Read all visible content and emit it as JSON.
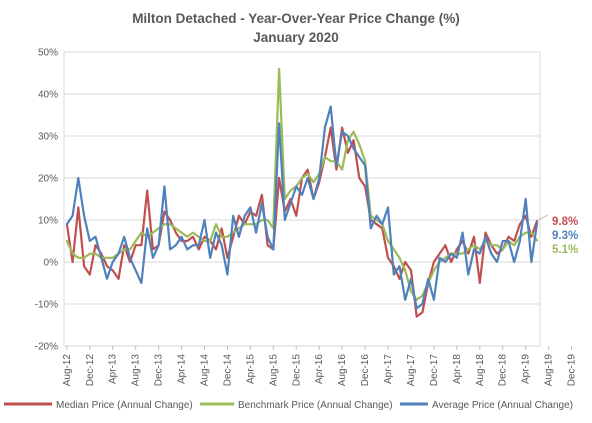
{
  "chart_data": {
    "type": "line",
    "title": "Milton Detached - Year-Over-Year Price Change (%)",
    "subtitle": "January 2020",
    "ylim": [
      -20,
      50
    ],
    "yticks": [
      "-20%",
      "-10%",
      "0%",
      "10%",
      "20%",
      "30%",
      "40%",
      "50%"
    ],
    "ytick_values": [
      -20,
      -10,
      0,
      10,
      20,
      30,
      40,
      50
    ],
    "x_start_month": "2012-08",
    "x_tick_labels": [
      "Aug-12",
      "Dec-12",
      "Apr-13",
      "Aug-13",
      "Dec-13",
      "Apr-14",
      "Aug-14",
      "Dec-14",
      "Apr-15",
      "Aug-15",
      "Dec-15",
      "Apr-16",
      "Aug-16",
      "Dec-16",
      "Apr-17",
      "Aug-17",
      "Dec-17",
      "Apr-18",
      "Aug-18",
      "Dec-18",
      "Apr-19",
      "Aug-19",
      "Dec-19"
    ],
    "grid": true,
    "legend_position": "bottom",
    "series": [
      {
        "name": "Median Price (Annual Change)",
        "color": "#c0504d",
        "end_label": "9.8%",
        "values": [
          9,
          0,
          13,
          -1,
          -3,
          4,
          2,
          -1,
          -2,
          -4,
          4,
          0,
          4,
          4,
          17,
          3,
          4,
          12,
          10,
          7,
          5,
          5,
          6,
          3,
          6,
          5,
          3,
          8,
          1,
          6,
          11,
          9,
          12,
          11,
          16,
          4,
          3,
          20,
          12,
          15,
          11,
          20,
          22,
          15,
          19,
          25,
          32,
          22,
          32,
          26,
          29,
          20,
          18,
          10,
          9,
          8,
          1,
          -1,
          -4,
          0,
          -2,
          -13,
          -12,
          -5,
          0,
          2,
          4,
          0,
          3,
          5,
          2,
          6,
          -5,
          7,
          4,
          2,
          3,
          6,
          5,
          9,
          11,
          6,
          9.8
        ]
      },
      {
        "name": "Benchmark Price (Annual Change)",
        "color": "#9bbb59",
        "end_label": "5.1%",
        "values": [
          5,
          2,
          1,
          1,
          2,
          2,
          1,
          1,
          1,
          2,
          3,
          3,
          5,
          7,
          6,
          7,
          8,
          9,
          9,
          8,
          7,
          6,
          7,
          6,
          5,
          5,
          9,
          6,
          6,
          7,
          8,
          9,
          9,
          9,
          10,
          10,
          8,
          46,
          15,
          17,
          18,
          20,
          21,
          19,
          21,
          25,
          24,
          24,
          22,
          29,
          31,
          28,
          24,
          11,
          10,
          9,
          5,
          3,
          1,
          -2,
          -7,
          -9,
          -8,
          -5,
          -2,
          0,
          1,
          2,
          2,
          2,
          3,
          4,
          3,
          5,
          4,
          4,
          3,
          5,
          4,
          6,
          7,
          7,
          5.1
        ]
      },
      {
        "name": "Average Price (Annual Change)",
        "color": "#4f81bd",
        "end_label": "9.3%",
        "values": [
          9,
          11,
          20,
          11,
          5,
          6,
          1,
          -4,
          0,
          2,
          6,
          1,
          -2,
          -5,
          8,
          1,
          4,
          18,
          3,
          4,
          6,
          3,
          4,
          4,
          10,
          1,
          7,
          4,
          -3,
          11,
          6,
          11,
          13,
          7,
          14,
          6,
          3,
          33,
          10,
          14,
          18,
          16,
          20,
          15,
          20,
          32,
          37,
          23,
          31,
          30,
          27,
          25,
          23,
          8,
          11,
          9,
          13,
          -3,
          -1,
          -9,
          -4,
          -11,
          -10,
          -4,
          -9,
          1,
          0,
          2,
          1,
          7,
          -3,
          3,
          2,
          6,
          2,
          0,
          5,
          5,
          0,
          5,
          15,
          0,
          9.3
        ]
      }
    ]
  }
}
